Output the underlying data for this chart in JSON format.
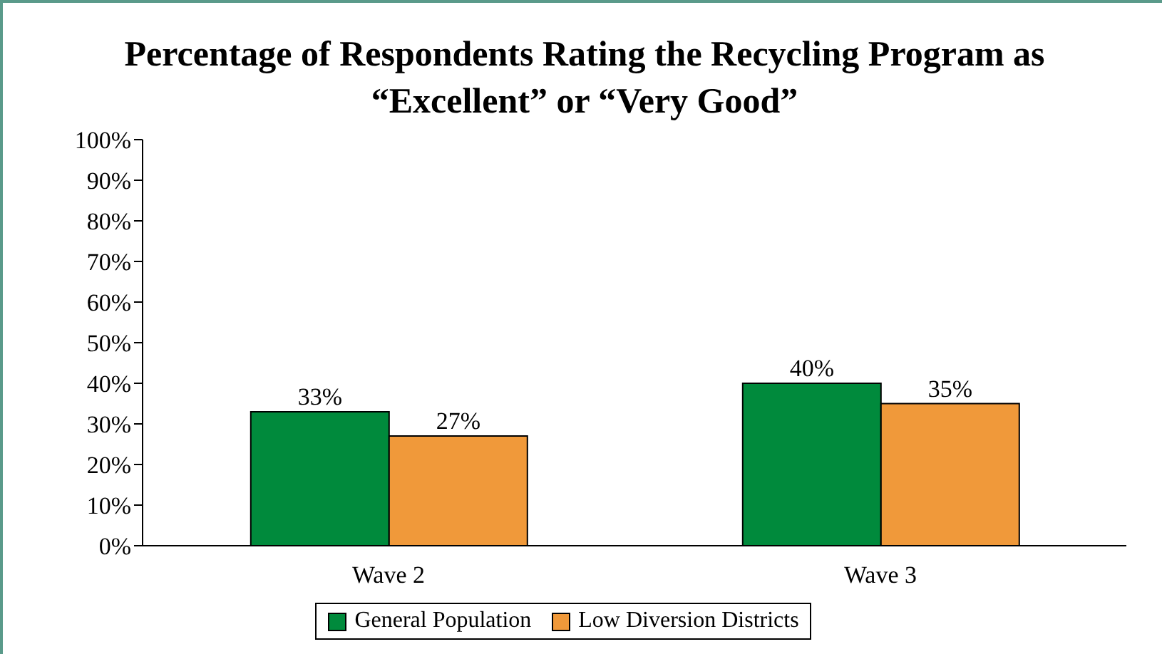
{
  "chart_data": {
    "type": "bar",
    "title": "Percentage of Respondents Rating the Recycling Program as “Excellent” or “Very Good”",
    "categories": [
      "Wave 2",
      "Wave 3"
    ],
    "series": [
      {
        "name": "General Population",
        "color": "#008a3c",
        "values": [
          33,
          40
        ],
        "value_labels": [
          "33%",
          "40%"
        ]
      },
      {
        "name": "Low Diversion Districts",
        "color": "#f0993a",
        "values": [
          27,
          35
        ],
        "value_labels": [
          "27%",
          "35%"
        ]
      }
    ],
    "ylim": [
      0,
      100
    ],
    "yticks": [
      {
        "value": 0,
        "label": "0%"
      },
      {
        "value": 10,
        "label": "10%"
      },
      {
        "value": 20,
        "label": "20%"
      },
      {
        "value": 30,
        "label": "30%"
      },
      {
        "value": 40,
        "label": "40%"
      },
      {
        "value": 50,
        "label": "50%"
      },
      {
        "value": 60,
        "label": "60%"
      },
      {
        "value": 70,
        "label": "70%"
      },
      {
        "value": 80,
        "label": "80%"
      },
      {
        "value": 90,
        "label": "90%"
      },
      {
        "value": 100,
        "label": "100%"
      }
    ],
    "grid": false,
    "legend": "bottom"
  }
}
